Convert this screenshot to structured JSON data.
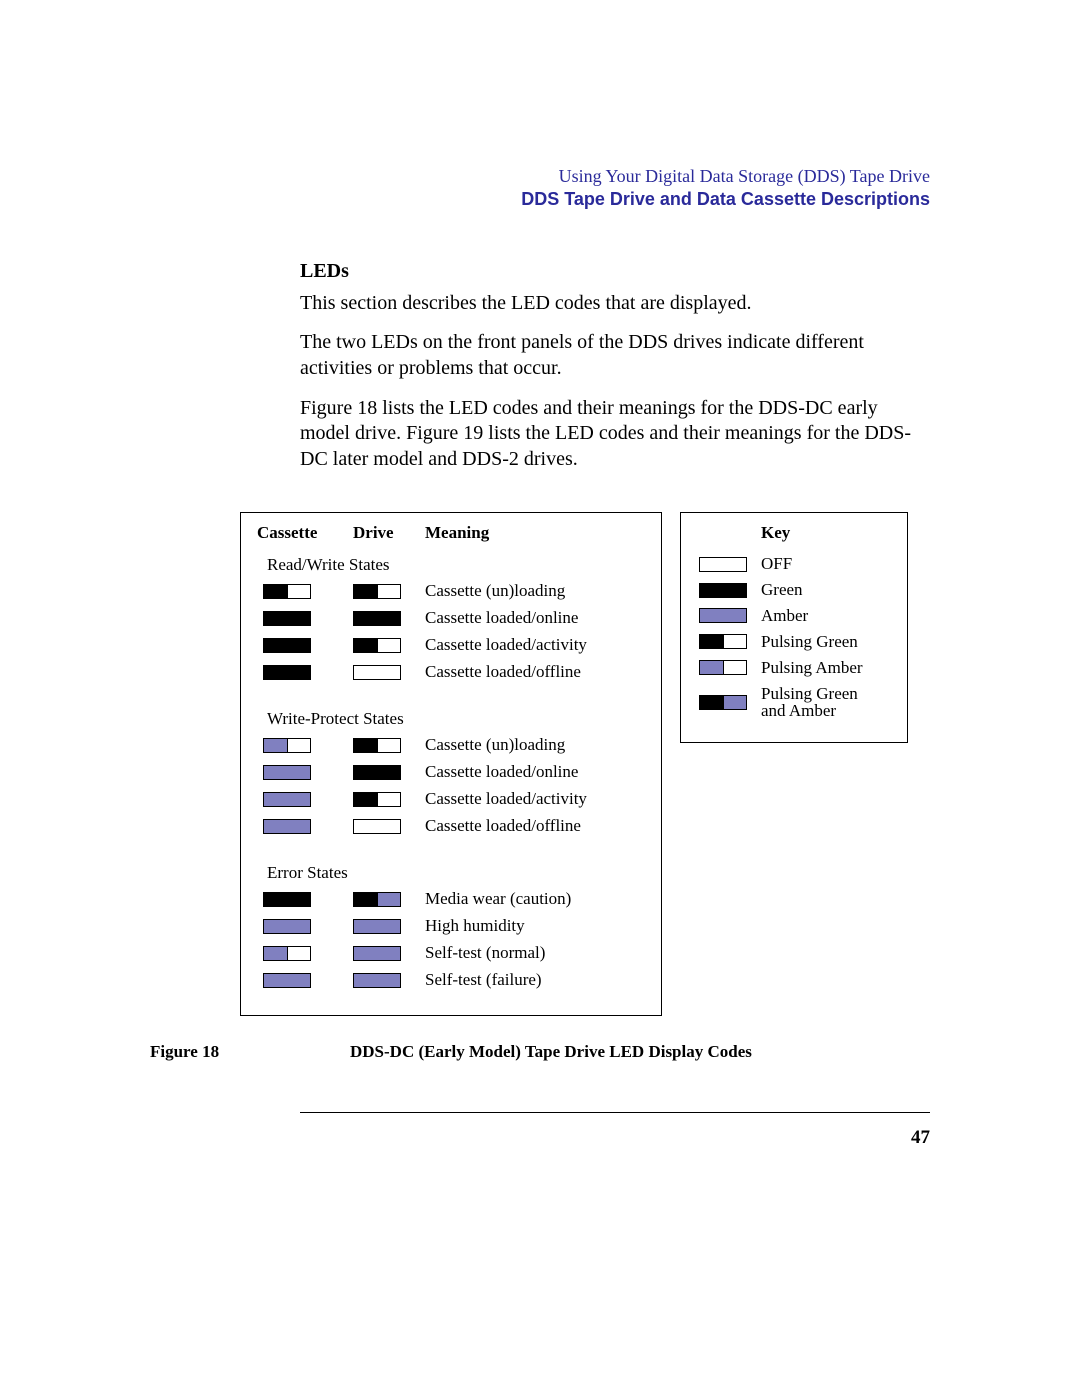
{
  "header": {
    "line1": "Using Your Digital Data Storage (DDS) Tape Drive",
    "line2": "DDS Tape Drive and Data Cassette Descriptions"
  },
  "section": {
    "title": "LEDs",
    "p1": "This section describes the LED codes that are displayed.",
    "p2": "The two LEDs on the front panels of the DDS drives indicate different activities or problems that occur.",
    "p3": "Figure 18 lists the LED codes and their meanings for the DDS-DC early model drive. Figure 19 lists the LED codes and their meanings for the DDS-DC later model and DDS-2 drives."
  },
  "table": {
    "headers": {
      "cassette": "Cassette",
      "drive": "Drive",
      "meaning": "Meaning",
      "key": "Key"
    },
    "groups": [
      {
        "title": "Read/Write  States",
        "rows": [
          {
            "cassette": "pulsing_green",
            "drive": "pulsing_green",
            "meaning": "Cassette (un)loading"
          },
          {
            "cassette": "green",
            "drive": "green",
            "meaning": "Cassette loaded/online"
          },
          {
            "cassette": "green",
            "drive": "pulsing_green",
            "meaning": "Cassette loaded/activity"
          },
          {
            "cassette": "green",
            "drive": "off",
            "meaning": "Cassette loaded/offline"
          }
        ]
      },
      {
        "title": "Write-Protect  States",
        "rows": [
          {
            "cassette": "pulsing_amber",
            "drive": "pulsing_green",
            "meaning": "Cassette (un)loading"
          },
          {
            "cassette": "amber",
            "drive": "green",
            "meaning": "Cassette loaded/online"
          },
          {
            "cassette": "amber",
            "drive": "pulsing_green",
            "meaning": "Cassette loaded/activity"
          },
          {
            "cassette": "amber",
            "drive": "off",
            "meaning": "Cassette loaded/offline"
          }
        ]
      },
      {
        "title": "Error  States",
        "rows": [
          {
            "cassette": "green",
            "drive": "pulsing_green_amber",
            "meaning": "Media wear (caution)"
          },
          {
            "cassette": "amber",
            "drive": "amber",
            "meaning": "High humidity"
          },
          {
            "cassette": "pulsing_amber",
            "drive": "amber",
            "meaning": "Self-test (normal)"
          },
          {
            "cassette": "amber",
            "drive": "amber",
            "meaning": "Self-test (failure)"
          }
        ]
      }
    ]
  },
  "key": {
    "items": [
      {
        "type": "off",
        "label": "OFF"
      },
      {
        "type": "green",
        "label": "Green"
      },
      {
        "type": "amber",
        "label": "Amber"
      },
      {
        "type": "pulsing_green",
        "label": "Pulsing Green"
      },
      {
        "type": "pulsing_amber",
        "label": "Pulsing Amber"
      },
      {
        "type": "pulsing_green_amber",
        "label": "Pulsing Green\nand Amber"
      }
    ]
  },
  "figure": {
    "label": "Figure 18",
    "caption": "DDS-DC (Early Model) Tape Drive LED Display Codes"
  },
  "page_number": "47",
  "colors": {
    "green_fill": "#000000",
    "amber_fill": "#8080c0",
    "off_fill": "#ffffff",
    "header_blue": "#2a2a9a"
  }
}
